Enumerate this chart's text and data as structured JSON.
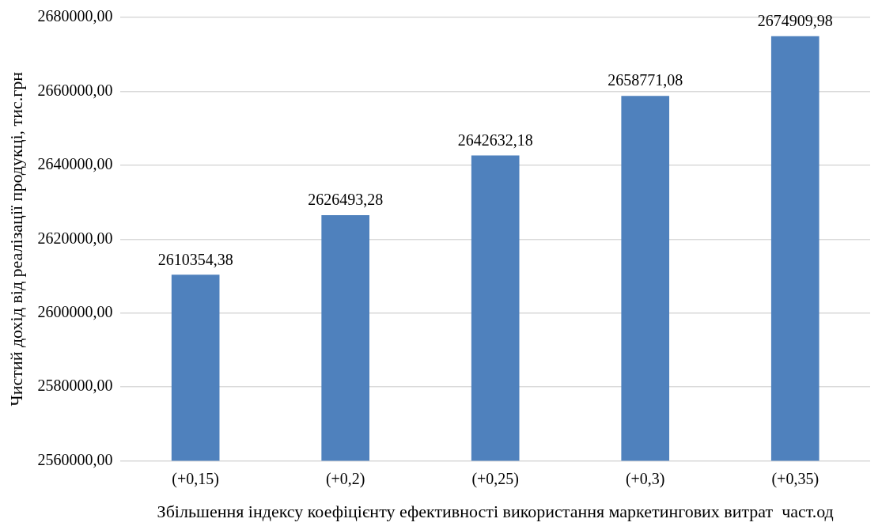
{
  "chart_data": {
    "type": "bar",
    "xlabel": "Збільшення індексу коефіцієнту ефективності використання маркетингових витрат  част.од",
    "ylabel": "Чистий дохід від реалізації продукці, тис.грн",
    "categories": [
      "(+0,15)",
      "(+0,2)",
      "(+0,25)",
      "(+0,3)",
      "(+0,35)"
    ],
    "values": [
      2610354.38,
      2626493.28,
      2642632.18,
      2658771.08,
      2674909.98
    ],
    "value_labels": [
      "2610354,38",
      "2626493,28",
      "2642632,18",
      "2658771,08",
      "2674909,98"
    ],
    "color": "#4f81bd",
    "ylim": [
      2560000,
      2680000
    ],
    "yticks": [
      {
        "value": 2560000,
        "label": "2560000,00"
      },
      {
        "value": 2580000,
        "label": "2580000,00"
      },
      {
        "value": 2600000,
        "label": "2600000,00"
      },
      {
        "value": 2620000,
        "label": "2620000,00"
      },
      {
        "value": 2640000,
        "label": "2640000,00"
      },
      {
        "value": 2660000,
        "label": "2660000,00"
      },
      {
        "value": 2680000,
        "label": "2680000,00"
      }
    ],
    "grid": "y",
    "legend": false
  }
}
